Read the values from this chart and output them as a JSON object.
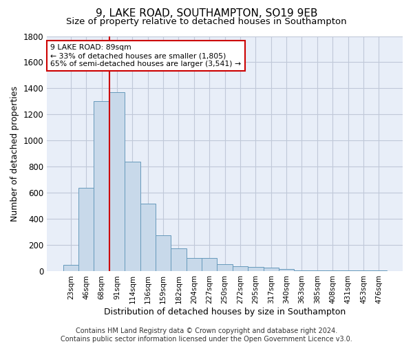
{
  "title": "9, LAKE ROAD, SOUTHAMPTON, SO19 9EB",
  "subtitle": "Size of property relative to detached houses in Southampton",
  "xlabel": "Distribution of detached houses by size in Southampton",
  "ylabel": "Number of detached properties",
  "categories": [
    "23sqm",
    "46sqm",
    "68sqm",
    "91sqm",
    "114sqm",
    "136sqm",
    "159sqm",
    "182sqm",
    "204sqm",
    "227sqm",
    "250sqm",
    "272sqm",
    "295sqm",
    "317sqm",
    "340sqm",
    "363sqm",
    "385sqm",
    "408sqm",
    "431sqm",
    "453sqm",
    "476sqm"
  ],
  "values": [
    50,
    640,
    1300,
    1370,
    840,
    520,
    275,
    175,
    105,
    105,
    55,
    40,
    35,
    30,
    20,
    10,
    10,
    10,
    10,
    10,
    10
  ],
  "bar_color": "#c8d9ea",
  "bar_edge_color": "#6699bb",
  "vline_bin": 3,
  "vline_color": "#cc0000",
  "annotation_text": "9 LAKE ROAD: 89sqm\n← 33% of detached houses are smaller (1,805)\n65% of semi-detached houses are larger (3,541) →",
  "annotation_box_color": "#cc0000",
  "ylim": [
    0,
    1800
  ],
  "yticks": [
    0,
    200,
    400,
    600,
    800,
    1000,
    1200,
    1400,
    1600,
    1800
  ],
  "grid_color": "#c0c8d8",
  "bg_color": "#e8eef8",
  "footer": "Contains HM Land Registry data © Crown copyright and database right 2024.\nContains public sector information licensed under the Open Government Licence v3.0.",
  "title_fontsize": 11,
  "subtitle_fontsize": 9.5,
  "xlabel_fontsize": 9,
  "ylabel_fontsize": 9,
  "footer_fontsize": 7
}
